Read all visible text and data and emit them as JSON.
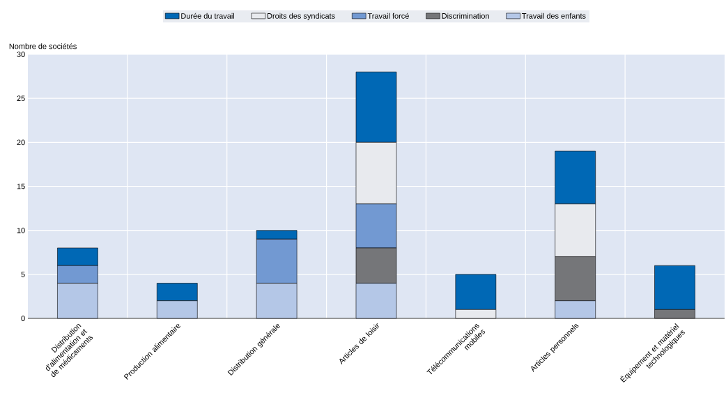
{
  "chart_data": {
    "type": "bar",
    "stacked": true,
    "ylabel": "Nombre de sociétés",
    "categories": [
      "Distribution d'alimentation et de médicaments",
      "Production alimentaire",
      "Distribution générale",
      "Articles de loisir",
      "Télécommunications mobiles",
      "Articles personnels",
      "Équipement et matériel technologiques"
    ],
    "series": [
      {
        "name": "Travail des enfants",
        "color": "#b4c7e7",
        "values": [
          4,
          2,
          4,
          4,
          0,
          2,
          0
        ]
      },
      {
        "name": "Discrimination",
        "color": "#757679",
        "values": [
          0,
          0,
          0,
          4,
          0,
          5,
          1
        ]
      },
      {
        "name": "Travail forcé",
        "color": "#7299d2",
        "values": [
          2,
          0,
          5,
          5,
          0,
          0,
          0
        ]
      },
      {
        "name": "Droits des syndicats",
        "color": "#e8eaee",
        "values": [
          0,
          0,
          0,
          7,
          1,
          6,
          0
        ]
      },
      {
        "name": "Durée du travail",
        "color": "#0068b5",
        "values": [
          2,
          2,
          1,
          8,
          4,
          6,
          5
        ]
      }
    ],
    "ylim": [
      0,
      30
    ],
    "yticks": [
      0,
      5,
      10,
      15,
      20,
      25,
      30
    ],
    "grid": true,
    "legend": "top"
  }
}
